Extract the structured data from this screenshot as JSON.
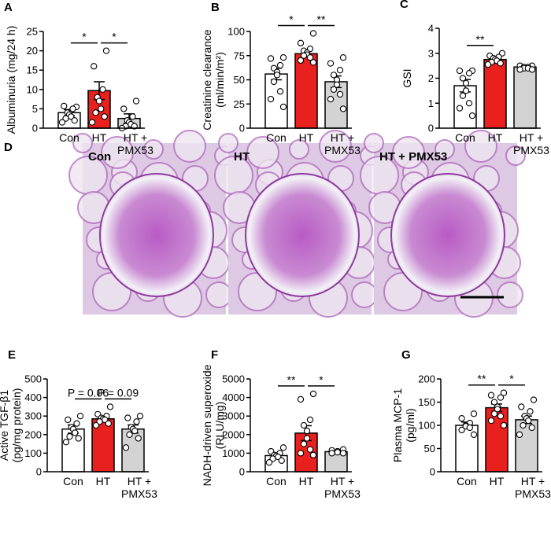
{
  "chart_data": [
    {
      "type": "bar",
      "panel": "A",
      "ylabel": "Albuminuria (mg/24 h)",
      "categories": [
        "Con",
        "HT",
        "HT +\nPMX53"
      ],
      "colors": [
        "#ffffff",
        "#e8211e",
        "#d3d3d3"
      ],
      "values": [
        4,
        9.7,
        2.5
      ],
      "errors": [
        0.8,
        2.3,
        1.2
      ],
      "points": [
        [
          5.5,
          5.7,
          5,
          4,
          3.5,
          3,
          2.5,
          2,
          1.5
        ],
        [
          20,
          16,
          10,
          8,
          7,
          5,
          4,
          3,
          1.5
        ],
        [
          7,
          5,
          3,
          2,
          1.5,
          1,
          0.5,
          0.5,
          0
        ]
      ],
      "ylim": [
        0,
        25
      ],
      "yticks": [
        0,
        5,
        10,
        15,
        20,
        25
      ],
      "significance": [
        {
          "label": "*",
          "from": 0,
          "to": 1
        },
        {
          "label": "*",
          "from": 1,
          "to": 2
        }
      ]
    },
    {
      "type": "bar",
      "panel": "B",
      "ylabel": "Creatinine clearance\n(ml/min/m²)",
      "categories": [
        "Con",
        "HT",
        "HT +\nPMX53"
      ],
      "colors": [
        "#ffffff",
        "#e8211e",
        "#d3d3d3"
      ],
      "values": [
        56,
        77,
        48
      ],
      "errors": [
        6,
        3,
        6
      ],
      "points": [
        [
          73,
          72,
          65,
          62,
          58,
          55,
          48,
          38,
          30,
          22
        ],
        [
          98,
          88,
          82,
          80,
          78,
          76,
          75,
          73,
          70,
          68
        ],
        [
          73,
          67,
          60,
          55,
          50,
          45,
          40,
          35,
          30,
          20
        ]
      ],
      "ylim": [
        0,
        100
      ],
      "yticks": [
        0,
        25,
        50,
        75,
        100
      ],
      "significance": [
        {
          "label": "*",
          "from": 0,
          "to": 1
        },
        {
          "label": "**",
          "from": 1,
          "to": 2
        }
      ]
    },
    {
      "type": "bar",
      "panel": "C",
      "ylabel": "GSI",
      "categories": [
        "Con",
        "HT",
        "HT +\nPMX53"
      ],
      "colors": [
        "#ffffff",
        "#e8211e",
        "#d3d3d3"
      ],
      "values": [
        1.7,
        2.75,
        2.45
      ],
      "errors": [
        0.25,
        0.08,
        0.05
      ],
      "points": [
        [
          2.3,
          2.3,
          2.2,
          2.0,
          1.8,
          1.5,
          1.3,
          1.0,
          0.8,
          0.5
        ],
        [
          3.0,
          2.9,
          2.85,
          2.8,
          2.75,
          2.7,
          2.65,
          2.6,
          2.55
        ],
        [
          2.5,
          2.5,
          2.45,
          2.45,
          2.4,
          2.4,
          2.35,
          2.35
        ]
      ],
      "ylim": [
        0,
        4
      ],
      "yticks": [
        0,
        1,
        2,
        3,
        4
      ],
      "significance": [
        {
          "label": "**",
          "from": 0,
          "to": 1
        }
      ]
    },
    {
      "type": "bar",
      "panel": "E",
      "ylabel": "Active TGF-β1\n(pg/mg protein)",
      "categories": [
        "Con",
        "HT",
        "HT +\nPMX53"
      ],
      "colors": [
        "#ffffff",
        "#e8211e",
        "#d3d3d3"
      ],
      "values": [
        230,
        285,
        230
      ],
      "errors": [
        22,
        12,
        22
      ],
      "points": [
        [
          300,
          280,
          260,
          240,
          230,
          210,
          190,
          180,
          160
        ],
        [
          350,
          310,
          300,
          290,
          285,
          280,
          270,
          260,
          250
        ],
        [
          300,
          290,
          270,
          240,
          230,
          220,
          200,
          180,
          130
        ]
      ],
      "ylim": [
        0,
        500
      ],
      "yticks": [
        0,
        100,
        200,
        300,
        400,
        500
      ],
      "significance": [
        {
          "label": "P = 0.06",
          "from": 0,
          "to": 1
        },
        {
          "label": "P = 0.09",
          "from": 1,
          "to": 2
        }
      ]
    },
    {
      "type": "bar",
      "panel": "F",
      "ylabel": "NADH-driven superoxide\n(RLU/mg)",
      "categories": [
        "Con",
        "HT",
        "HT +\nPMX53"
      ],
      "colors": [
        "#ffffff",
        "#e8211e",
        "#d3d3d3"
      ],
      "values": [
        870,
        2080,
        1080
      ],
      "errors": [
        100,
        400,
        70
      ],
      "points": [
        [
          1300,
          1100,
          1000,
          900,
          850,
          800,
          700,
          600,
          500
        ],
        [
          4200,
          3900,
          2800,
          2500,
          2200,
          1800,
          1500,
          1200,
          1000,
          900
        ],
        [
          1200,
          1150,
          1100,
          1050,
          1000,
          1000
        ]
      ],
      "ylim": [
        0,
        5000
      ],
      "yticks": [
        0,
        1000,
        2000,
        3000,
        4000,
        5000
      ],
      "significance": [
        {
          "label": "**",
          "from": 0,
          "to": 1
        },
        {
          "label": "*",
          "from": 1,
          "to": 2
        }
      ]
    },
    {
      "type": "bar",
      "panel": "G",
      "ylabel": "Plasma MCP-1\n(pg/ml)",
      "categories": [
        "Con",
        "HT",
        "HT +\nPMX53"
      ],
      "colors": [
        "#ffffff",
        "#e8211e",
        "#d3d3d3"
      ],
      "values": [
        100,
        138,
        112
      ],
      "errors": [
        7,
        8,
        8
      ],
      "points": [
        [
          125,
          115,
          105,
          100,
          98,
          95,
          90,
          80
        ],
        [
          170,
          165,
          160,
          150,
          140,
          135,
          125,
          120,
          110,
          100
        ],
        [
          155,
          140,
          130,
          120,
          115,
          110,
          100,
          95,
          80
        ]
      ],
      "ylim": [
        0,
        200
      ],
      "yticks": [
        0,
        50,
        100,
        150,
        200
      ],
      "significance": [
        {
          "label": "**",
          "from": 0,
          "to": 1
        },
        {
          "label": "*",
          "from": 1,
          "to": 2
        }
      ]
    }
  ],
  "image_panel": {
    "panel": "D",
    "images": [
      "Con",
      "HT",
      "HT + PMX53"
    ]
  }
}
